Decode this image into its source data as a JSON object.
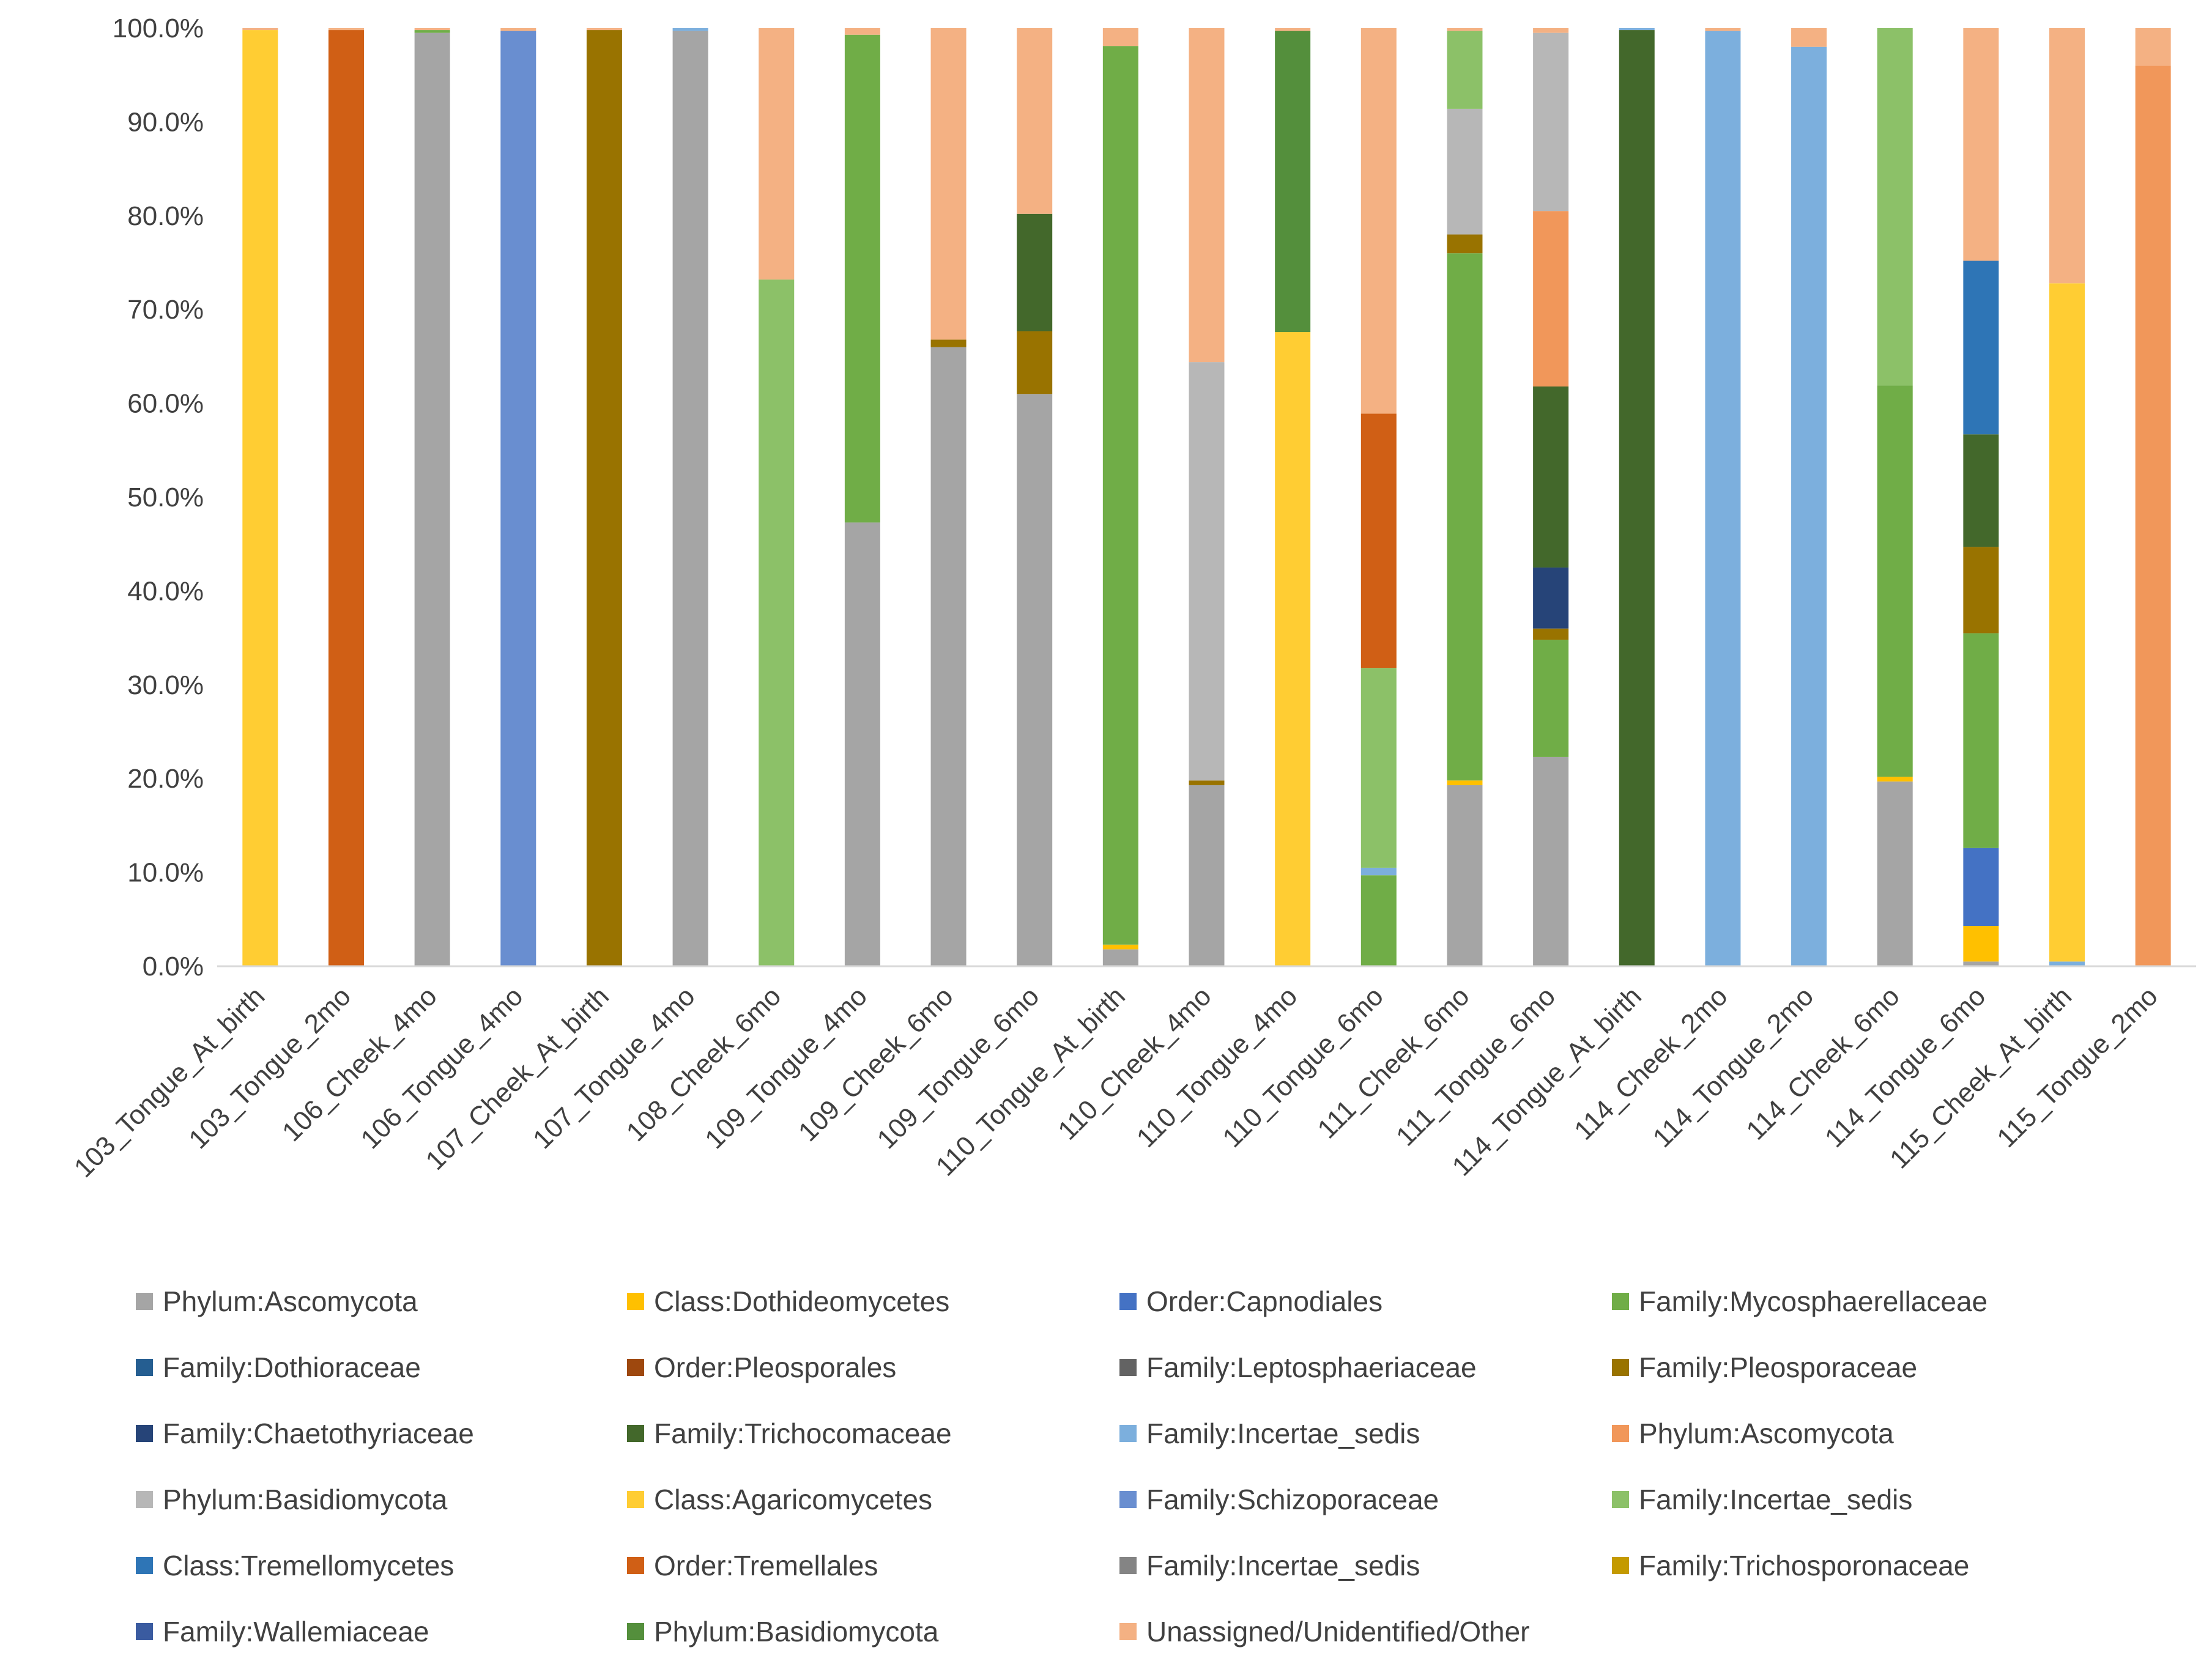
{
  "chart_data": {
    "type": "bar",
    "stacked": true,
    "percent": true,
    "title": "",
    "xlabel": "",
    "ylabel": "",
    "ylim": [
      0,
      100
    ],
    "yticks": [
      "0.0%",
      "10.0%",
      "20.0%",
      "30.0%",
      "40.0%",
      "50.0%",
      "60.0%",
      "70.0%",
      "80.0%",
      "90.0%",
      "100.0%"
    ],
    "grid": false,
    "legend_position": "bottom",
    "categories": [
      "103_Tongue_At_birth",
      "103_Tongue_2mo",
      "106_Cheek_4mo",
      "106_Tongue_4mo",
      "107_Cheek_At_birth",
      "107_Tongue_4mo",
      "108_Cheek_6mo",
      "109_Tongue_4mo",
      "109_Cheek_6mo",
      "109_Tongue_6mo",
      "110_Tongue_At_birth",
      "110_Cheek_4mo",
      "110_Tongue_4mo",
      "110_Tongue_6mo",
      "111_Cheek_6mo",
      "111_Tongue_6mo",
      "114_Tongue_At_birth",
      "114_Cheek_2mo",
      "114_Tongue_2mo",
      "114_Cheek_6mo",
      "114_Tongue_6mo",
      "115_Cheek_At_birth",
      "115_Tongue_2mo"
    ],
    "series": [
      {
        "name": "Phylum:Ascomycota",
        "color": "#a5a5a5",
        "values": [
          0,
          0,
          99.5,
          0,
          0,
          99.7,
          0,
          47.3,
          66.0,
          61.0,
          1.8,
          19.3,
          0,
          0,
          19.3,
          22.3,
          0,
          0,
          0,
          19.7,
          0.5,
          0,
          0
        ]
      },
      {
        "name": "Class:Dothideomycetes",
        "color": "#ffc000",
        "values": [
          0,
          0,
          0,
          0,
          0,
          0,
          0,
          0,
          0,
          0,
          0.5,
          0,
          0,
          0,
          0.5,
          0,
          0,
          0,
          0,
          0.5,
          3.8,
          0,
          0
        ]
      },
      {
        "name": "Order:Capnodiales",
        "color": "#4472c4",
        "values": [
          0,
          0,
          0,
          0,
          0,
          0,
          0,
          0,
          0,
          0,
          0,
          0,
          0,
          0,
          0,
          0,
          0,
          0,
          0,
          0,
          8.3,
          0,
          0
        ]
      },
      {
        "name": "Family:Mycosphaerellaceae",
        "color": "#70ad47",
        "values": [
          0,
          0,
          0.3,
          0,
          0,
          0,
          0,
          52.0,
          0,
          0,
          95.8,
          0,
          0,
          9.7,
          56.2,
          12.5,
          0,
          0,
          0,
          41.7,
          22.9,
          0,
          0
        ]
      },
      {
        "name": "Family:Dothioraceae",
        "color": "#255e91",
        "values": [
          0,
          0,
          0,
          0,
          0,
          0,
          0,
          0,
          0,
          0,
          0,
          0,
          0,
          0,
          0,
          0,
          0,
          0,
          0,
          0,
          0,
          0,
          0
        ]
      },
      {
        "name": "Order:Pleosporales",
        "color": "#9e480e",
        "values": [
          0,
          0,
          0,
          0,
          0,
          0,
          0,
          0,
          0,
          0,
          0,
          0,
          0,
          0,
          0,
          0,
          0,
          0,
          0,
          0,
          0,
          0,
          0
        ]
      },
      {
        "name": "Family:Leptosphaeriaceae",
        "color": "#636363",
        "values": [
          0,
          0,
          0,
          0,
          0,
          0,
          0,
          0,
          0,
          0,
          0,
          0,
          0,
          0,
          0,
          0,
          0,
          0,
          0,
          0,
          0,
          0,
          0
        ]
      },
      {
        "name": "Family:Pleosporaceae",
        "color": "#997300",
        "values": [
          0,
          0,
          0,
          0,
          99.8,
          0,
          0,
          0,
          0.8,
          6.7,
          0,
          0.5,
          0,
          0,
          2.0,
          1.2,
          0,
          0,
          0,
          0,
          9.2,
          0,
          0
        ]
      },
      {
        "name": "Family:Chaetothyriaceae",
        "color": "#264478",
        "values": [
          0,
          0,
          0,
          0,
          0,
          0,
          0,
          0,
          0,
          0,
          0,
          0,
          0,
          0,
          0,
          6.5,
          0,
          0,
          0,
          0,
          0,
          0,
          0
        ]
      },
      {
        "name": "Family:Trichocomaceae",
        "color": "#43682b",
        "values": [
          0,
          0,
          0,
          0,
          0,
          0,
          0,
          0,
          0,
          12.5,
          0,
          0,
          0,
          0,
          0,
          19.3,
          99.8,
          0,
          0,
          0,
          12.0,
          0,
          0
        ]
      },
      {
        "name": "Family:Incertae_sedis",
        "color": "#7cafdd",
        "values": [
          0,
          0,
          0,
          0,
          0,
          0.3,
          0,
          0,
          0,
          0,
          0,
          0,
          0,
          0.8,
          0,
          0,
          0.2,
          99.7,
          98.0,
          0,
          0,
          0.5,
          0
        ]
      },
      {
        "name": "Phylum:Ascomycota",
        "color": "#f1975a",
        "values": [
          0,
          0,
          0,
          0,
          0,
          0,
          0,
          0,
          0,
          0,
          0,
          0,
          0,
          0,
          0,
          18.7,
          0,
          0,
          0,
          0,
          0,
          0,
          96.0
        ]
      },
      {
        "name": "Phylum:Basidiomycota",
        "color": "#b7b7b7",
        "values": [
          0,
          0,
          0,
          0,
          0,
          0,
          0,
          0,
          0,
          0,
          0,
          44.6,
          0,
          0,
          13.4,
          19.0,
          0,
          0,
          0,
          0,
          0,
          0,
          0
        ]
      },
      {
        "name": "Class:Agaricomycetes",
        "color": "#ffcd33",
        "values": [
          99.8,
          0,
          0,
          0,
          0,
          0,
          0,
          0,
          0,
          0,
          0,
          0,
          67.6,
          0,
          0,
          0,
          0,
          0,
          0,
          0,
          0,
          72.3,
          0
        ]
      },
      {
        "name": "Family:Schizoporaceae",
        "color": "#698ed0",
        "values": [
          0,
          0,
          0,
          99.7,
          0,
          0,
          0,
          0,
          0,
          0,
          0,
          0,
          0,
          0,
          0,
          0,
          0,
          0,
          0,
          0,
          0,
          0,
          0
        ]
      },
      {
        "name": "Family:Incertae_sedis",
        "color": "#8cc168",
        "values": [
          0,
          0,
          0,
          0,
          0,
          0,
          73.2,
          0,
          0,
          0,
          0,
          0,
          0,
          21.3,
          8.3,
          0,
          0,
          0,
          0,
          38.1,
          0,
          0,
          0
        ]
      },
      {
        "name": "Class:Tremellomycetes",
        "color": "#2e75b6",
        "values": [
          0,
          0,
          0,
          0,
          0,
          0,
          0,
          0,
          0,
          0,
          0,
          0,
          0,
          0,
          0,
          0,
          0,
          0,
          0,
          0,
          18.5,
          0,
          0
        ]
      },
      {
        "name": "Order:Tremellales",
        "color": "#d05f15",
        "values": [
          0,
          99.8,
          0,
          0,
          0,
          0,
          0,
          0,
          0,
          0,
          0,
          0,
          0,
          27.1,
          0,
          0,
          0,
          0,
          0,
          0,
          0,
          0,
          0
        ]
      },
      {
        "name": "Family:Incertae_sedis",
        "color": "#848484",
        "values": [
          0,
          0,
          0,
          0,
          0,
          0,
          0,
          0,
          0,
          0,
          0,
          0,
          0,
          0,
          0,
          0,
          0,
          0,
          0,
          0,
          0,
          0,
          0
        ]
      },
      {
        "name": "Family:Trichosporonaceae",
        "color": "#c49a00",
        "values": [
          0,
          0,
          0,
          0,
          0,
          0,
          0,
          0,
          0,
          0,
          0,
          0,
          0,
          0,
          0,
          0,
          0,
          0,
          0,
          0,
          0,
          0,
          0
        ]
      },
      {
        "name": "Family:Wallemiaceae",
        "color": "#3a5ba0",
        "values": [
          0,
          0,
          0,
          0,
          0,
          0,
          0,
          0,
          0,
          0,
          0,
          0,
          0,
          0,
          0,
          0,
          0,
          0,
          0,
          0,
          0,
          0,
          0
        ]
      },
      {
        "name": "Phylum:Basidiomycota",
        "color": "#548f3c",
        "values": [
          0,
          0,
          0,
          0,
          0,
          0,
          0,
          0,
          0,
          0,
          0,
          0,
          32.1,
          0,
          0,
          0,
          0,
          0,
          0,
          0,
          0,
          0,
          0
        ]
      },
      {
        "name": "Unassigned/Unidentified/Other",
        "color": "#f4b183",
        "values": [
          0.2,
          0.2,
          0.2,
          0.3,
          0.2,
          0,
          26.8,
          0.7,
          33.2,
          19.8,
          1.9,
          35.6,
          0.3,
          41.1,
          0.3,
          0.5,
          0,
          0.3,
          2.0,
          0,
          24.8,
          27.2,
          4.0
        ]
      }
    ]
  }
}
